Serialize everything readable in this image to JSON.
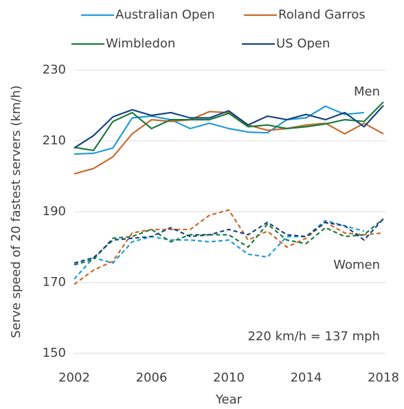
{
  "chart_data": {
    "type": "line",
    "y_label": "Serve speed of 20 fastest servers (km/h)",
    "x_label": "Year",
    "annotations": {
      "men": "Men",
      "women": "Women",
      "conversion": "220 km/h = 137 mph"
    },
    "x": [
      2002,
      2003,
      2004,
      2005,
      2006,
      2007,
      2008,
      2009,
      2010,
      2011,
      2012,
      2013,
      2014,
      2015,
      2016,
      2017,
      2018
    ],
    "xlim": [
      2002,
      2018
    ],
    "xticks": [
      2002,
      2006,
      2010,
      2014,
      2018
    ],
    "ylim": [
      150,
      230
    ],
    "yticks": [
      150,
      170,
      190,
      210,
      230
    ],
    "grid": true,
    "series": [
      {
        "name": "Australian Open",
        "color": "#1f9bd7",
        "men": [
          206.3,
          206.5,
          208,
          216.5,
          217,
          216,
          213.5,
          215,
          213.5,
          212.5,
          212.3,
          216,
          216.5,
          219.8,
          217.5,
          218,
          null
        ],
        "women": [
          171,
          177,
          175.5,
          181.5,
          183,
          182,
          182,
          181.5,
          182,
          178,
          177.2,
          183,
          183,
          187.5,
          186,
          184.5,
          null
        ]
      },
      {
        "name": "Roland Garros",
        "color": "#c8682c",
        "men": [
          200.7,
          202.2,
          205.5,
          212,
          216,
          215.5,
          216,
          218.3,
          218,
          214.5,
          213,
          213.5,
          214.5,
          215,
          212,
          215,
          212
        ],
        "women": [
          169.5,
          173.5,
          176,
          184,
          185,
          185,
          185,
          189,
          190.5,
          182,
          184.5,
          180,
          182.5,
          187,
          184,
          183.5,
          184
        ]
      },
      {
        "name": "Wimbledon",
        "color": "#1a7a3c",
        "men": [
          208.2,
          207.3,
          215.5,
          218,
          213.5,
          216,
          216,
          216,
          217.8,
          214,
          214.5,
          213.5,
          214,
          214.8,
          216,
          215.5,
          221
        ],
        "women": [
          175,
          176.5,
          182.5,
          183,
          185,
          181.5,
          183.5,
          183.5,
          183.5,
          180,
          186.5,
          182,
          181,
          185.5,
          183,
          183.5,
          188
        ]
      },
      {
        "name": "US Open",
        "color": "#17427f",
        "men": [
          208,
          211.5,
          216.8,
          218.8,
          217.2,
          218,
          216.5,
          216.5,
          218.5,
          214.5,
          217,
          216,
          217.5,
          216,
          218,
          214,
          220
        ],
        "women": [
          175.5,
          177,
          182,
          182.5,
          183,
          185.5,
          183,
          183.5,
          185,
          183.5,
          187,
          183.5,
          183,
          187,
          186,
          182,
          188
        ]
      }
    ]
  }
}
